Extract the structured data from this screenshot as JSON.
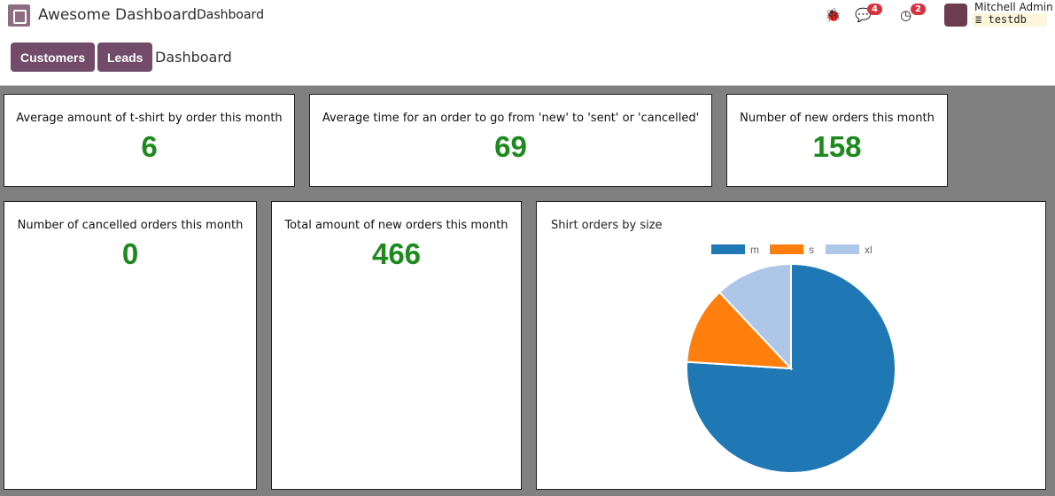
{
  "header": {
    "app_title": "Awesome Dashboard",
    "menu_item": "Dashboard",
    "messages_count": "4",
    "activities_count": "2",
    "user_name": "Mitchell Admin",
    "database": "testdb"
  },
  "controlpanel": {
    "buttons": [
      "Customers",
      "Leads"
    ],
    "breadcrumb": "Dashboard"
  },
  "cards": [
    {
      "title": "Average amount of t-shirt by order this month",
      "value": "6"
    },
    {
      "title": "Average time for an order to go from 'new' to 'sent' or 'cancelled'",
      "value": "69"
    },
    {
      "title": "Number of new orders this month",
      "value": "158"
    },
    {
      "title": "Number of cancelled orders this month",
      "value": "0"
    },
    {
      "title": "Total amount of new orders this month",
      "value": "466"
    }
  ],
  "chart_data": {
    "type": "pie",
    "title": "Shirt orders by size",
    "categories": [
      "m",
      "s",
      "xl"
    ],
    "values": [
      76,
      12,
      12
    ],
    "colors": [
      "#1f77b4",
      "#ff7f0e",
      "#aec7e8"
    ],
    "legend": "top"
  }
}
